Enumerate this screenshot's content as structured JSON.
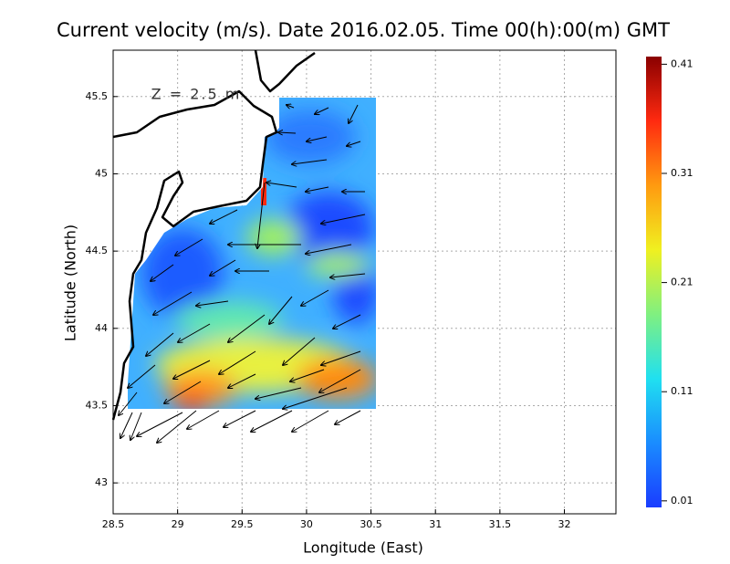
{
  "title": "Current velocity (m/s). Date 2016.02.05. Time 00(h):00(m) GMT",
  "annotation": "Z = 2.5 m",
  "xaxis": {
    "label": "Longitude (East)",
    "lim": [
      28.5,
      32.4
    ],
    "ticks": [
      28.5,
      29,
      29.5,
      30,
      30.5,
      31,
      31.5,
      32
    ]
  },
  "yaxis": {
    "label": "Latitude (North)",
    "lim": [
      42.8,
      45.8
    ],
    "ticks": [
      43,
      43.5,
      44,
      44.5,
      45,
      45.5
    ]
  },
  "grid": true,
  "colorbar": {
    "lim": [
      0.004,
      0.417
    ],
    "ticks": [
      0.01,
      0.11,
      0.21,
      0.31,
      0.41
    ],
    "colors": [
      "#1a3cff",
      "#1a8cff",
      "#20e0f0",
      "#80f080",
      "#f0f020",
      "#ff9a10",
      "#ff2a10",
      "#8a0000"
    ]
  }
}
